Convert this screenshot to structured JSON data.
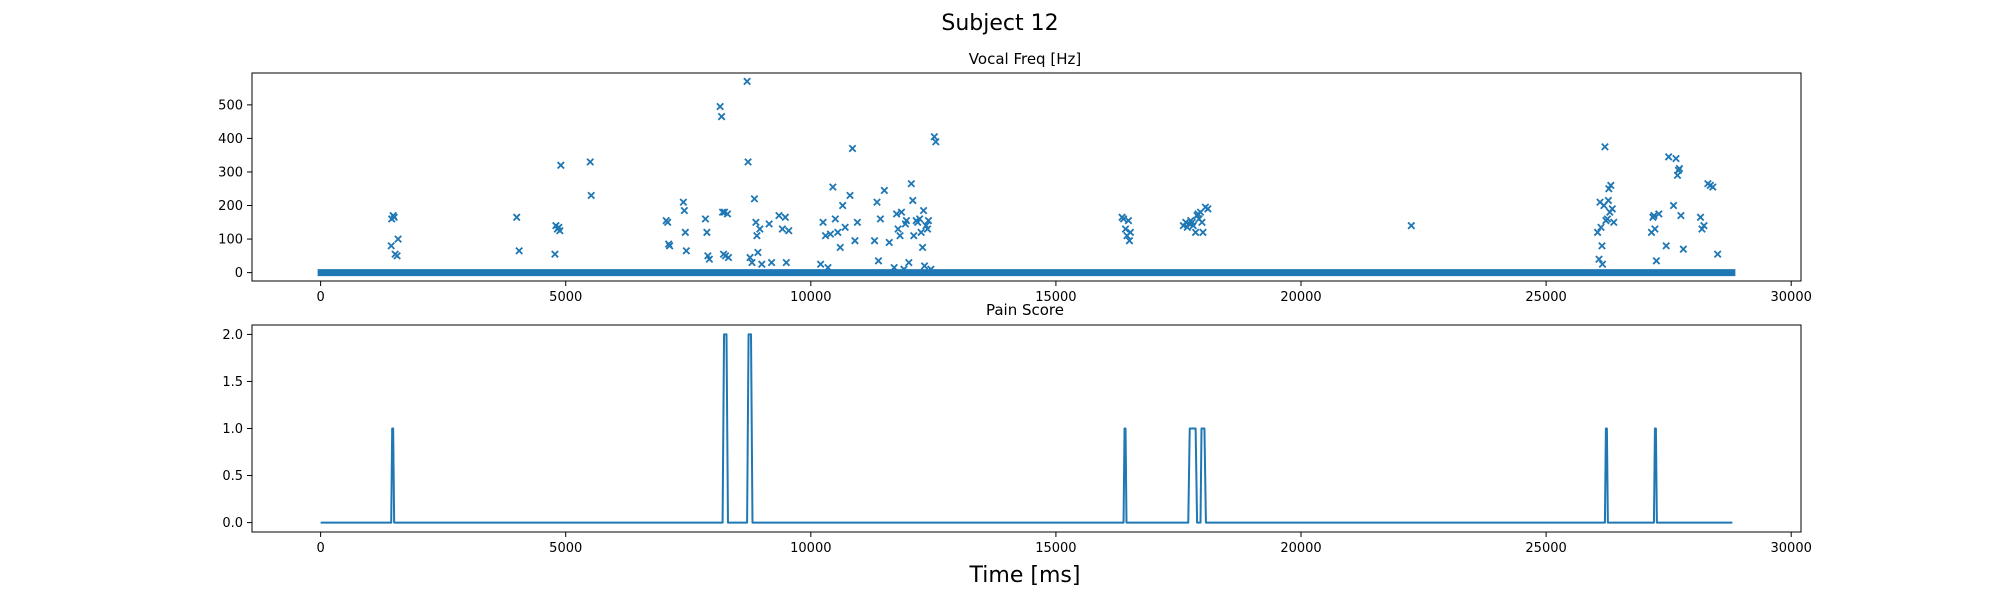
{
  "figure": {
    "suptitle": "Subject 12",
    "xlabel": "Time [ms]"
  },
  "chart_data": [
    {
      "type": "scatter",
      "title": "Vocal Freq [Hz]",
      "xlabel": "",
      "ylabel": "",
      "xlim": [
        -1400,
        30200
      ],
      "ylim": [
        -25,
        595
      ],
      "xticks": [
        0,
        5000,
        10000,
        15000,
        20000,
        25000,
        30000
      ],
      "xtick_labels": [
        "0",
        "5000",
        "10000",
        "15000",
        "20000",
        "25000",
        "30000"
      ],
      "yticks": [
        0,
        100,
        200,
        300,
        400,
        500
      ],
      "ytick_labels": [
        "0",
        "100",
        "200",
        "300",
        "400",
        "500"
      ],
      "marker": "x",
      "color": "#1f77b4",
      "grid": false,
      "baseline": {
        "y": 0,
        "x_range": [
          0,
          28800
        ],
        "note": "dense zero values"
      },
      "series": [
        {
          "points": [
            [
              1450,
              160
            ],
            [
              1480,
              170
            ],
            [
              1500,
              165
            ],
            [
              1440,
              80
            ],
            [
              1520,
              55
            ],
            [
              1560,
              50
            ],
            [
              1580,
              100
            ],
            [
              4000,
              165
            ],
            [
              4050,
              65
            ],
            [
              4800,
              140
            ],
            [
              4830,
              130
            ],
            [
              4860,
              135
            ],
            [
              4880,
              125
            ],
            [
              4780,
              55
            ],
            [
              4900,
              320
            ],
            [
              5500,
              330
            ],
            [
              5520,
              230
            ],
            [
              7050,
              155
            ],
            [
              7080,
              150
            ],
            [
              7100,
              85
            ],
            [
              7120,
              80
            ],
            [
              7400,
              210
            ],
            [
              7420,
              185
            ],
            [
              7440,
              120
            ],
            [
              7460,
              65
            ],
            [
              7850,
              160
            ],
            [
              7880,
              120
            ],
            [
              7900,
              50
            ],
            [
              7930,
              40
            ],
            [
              8150,
              495
            ],
            [
              8180,
              465
            ],
            [
              8200,
              180
            ],
            [
              8220,
              55
            ],
            [
              8240,
              180
            ],
            [
              8260,
              50
            ],
            [
              8300,
              175
            ],
            [
              8320,
              45
            ],
            [
              8700,
              570
            ],
            [
              8720,
              330
            ],
            [
              8760,
              45
            ],
            [
              8800,
              30
            ],
            [
              8850,
              220
            ],
            [
              8880,
              150
            ],
            [
              8900,
              110
            ],
            [
              8920,
              60
            ],
            [
              8960,
              130
            ],
            [
              9000,
              25
            ],
            [
              9150,
              145
            ],
            [
              9200,
              30
            ],
            [
              9350,
              170
            ],
            [
              9420,
              130
            ],
            [
              9480,
              165
            ],
            [
              9500,
              30
            ],
            [
              9550,
              125
            ],
            [
              10200,
              25
            ],
            [
              10250,
              150
            ],
            [
              10300,
              110
            ],
            [
              10350,
              15
            ],
            [
              10400,
              115
            ],
            [
              10450,
              255
            ],
            [
              10500,
              160
            ],
            [
              10550,
              120
            ],
            [
              10600,
              75
            ],
            [
              10650,
              200
            ],
            [
              10700,
              135
            ],
            [
              10800,
              230
            ],
            [
              10850,
              370
            ],
            [
              10900,
              95
            ],
            [
              10950,
              150
            ],
            [
              11300,
              95
            ],
            [
              11350,
              210
            ],
            [
              11380,
              35
            ],
            [
              11420,
              160
            ],
            [
              11500,
              245
            ],
            [
              11600,
              90
            ],
            [
              11700,
              15
            ],
            [
              11750,
              175
            ],
            [
              11780,
              130
            ],
            [
              11820,
              110
            ],
            [
              11850,
              180
            ],
            [
              11900,
              10
            ],
            [
              11930,
              145
            ],
            [
              11950,
              155
            ],
            [
              12000,
              30
            ],
            [
              12050,
              265
            ],
            [
              12080,
              215
            ],
            [
              12100,
              110
            ],
            [
              12150,
              155
            ],
            [
              12180,
              150
            ],
            [
              12220,
              160
            ],
            [
              12250,
              120
            ],
            [
              12280,
              75
            ],
            [
              12300,
              185
            ],
            [
              12320,
              20
            ],
            [
              12350,
              140
            ],
            [
              12380,
              130
            ],
            [
              12400,
              155
            ],
            [
              12450,
              10
            ],
            [
              12520,
              405
            ],
            [
              12550,
              390
            ],
            [
              16350,
              165
            ],
            [
              16380,
              160
            ],
            [
              16420,
              130
            ],
            [
              16450,
              110
            ],
            [
              16480,
              155
            ],
            [
              16500,
              95
            ],
            [
              16520,
              120
            ],
            [
              17600,
              140
            ],
            [
              17650,
              150
            ],
            [
              17680,
              135
            ],
            [
              17720,
              145
            ],
            [
              17750,
              155
            ],
            [
              17780,
              150
            ],
            [
              17800,
              140
            ],
            [
              17850,
              120
            ],
            [
              17880,
              170
            ],
            [
              17900,
              175
            ],
            [
              17920,
              160
            ],
            [
              17950,
              180
            ],
            [
              17980,
              150
            ],
            [
              18000,
              120
            ],
            [
              18050,
              195
            ],
            [
              18100,
              190
            ],
            [
              22250,
              140
            ],
            [
              26050,
              120
            ],
            [
              26080,
              40
            ],
            [
              26100,
              210
            ],
            [
              26120,
              135
            ],
            [
              26140,
              80
            ],
            [
              26150,
              25
            ],
            [
              26180,
              200
            ],
            [
              26200,
              375
            ],
            [
              26220,
              155
            ],
            [
              26250,
              160
            ],
            [
              26270,
              215
            ],
            [
              26280,
              250
            ],
            [
              26300,
              180
            ],
            [
              26320,
              260
            ],
            [
              26350,
              190
            ],
            [
              26380,
              150
            ],
            [
              27150,
              120
            ],
            [
              27180,
              165
            ],
            [
              27200,
              170
            ],
            [
              27220,
              130
            ],
            [
              27250,
              35
            ],
            [
              27300,
              175
            ],
            [
              27450,
              80
            ],
            [
              27500,
              345
            ],
            [
              27600,
              200
            ],
            [
              27650,
              340
            ],
            [
              27680,
              290
            ],
            [
              27700,
              305
            ],
            [
              27720,
              310
            ],
            [
              27750,
              170
            ],
            [
              27800,
              70
            ],
            [
              28150,
              165
            ],
            [
              28180,
              130
            ],
            [
              28220,
              140
            ],
            [
              28300,
              265
            ],
            [
              28350,
              260
            ],
            [
              28400,
              255
            ],
            [
              28500,
              55
            ]
          ]
        }
      ]
    },
    {
      "type": "line",
      "title": "Pain Score",
      "xlabel": "Time [ms]",
      "ylabel": "",
      "xlim": [
        -1400,
        30200
      ],
      "ylim": [
        -0.1,
        2.1
      ],
      "xticks": [
        0,
        5000,
        10000,
        15000,
        20000,
        25000,
        30000
      ],
      "xtick_labels": [
        "0",
        "5000",
        "10000",
        "15000",
        "20000",
        "25000",
        "30000"
      ],
      "yticks": [
        0,
        0.5,
        1,
        1.5,
        2
      ],
      "ytick_labels": [
        "0.0",
        "0.5",
        "1.0",
        "1.5",
        "2.0"
      ],
      "color": "#1f77b4",
      "grid": false,
      "series": [
        {
          "x": [
            0,
            1440,
            1460,
            1480,
            1500,
            8200,
            8230,
            8280,
            8310,
            8700,
            8730,
            8780,
            8810,
            16380,
            16400,
            16420,
            16440,
            17700,
            17730,
            17850,
            17880,
            17950,
            17970,
            18030,
            18060,
            26200,
            26220,
            26240,
            26260,
            27200,
            27220,
            27240,
            27260,
            28800
          ],
          "y": [
            0,
            0,
            1,
            1,
            0,
            0,
            2,
            2,
            0,
            0,
            2,
            2,
            0,
            0,
            1,
            1,
            0,
            0,
            1,
            1,
            0,
            0,
            1,
            1,
            0,
            0,
            1,
            1,
            0,
            0,
            1,
            1,
            0,
            0
          ]
        }
      ]
    }
  ]
}
